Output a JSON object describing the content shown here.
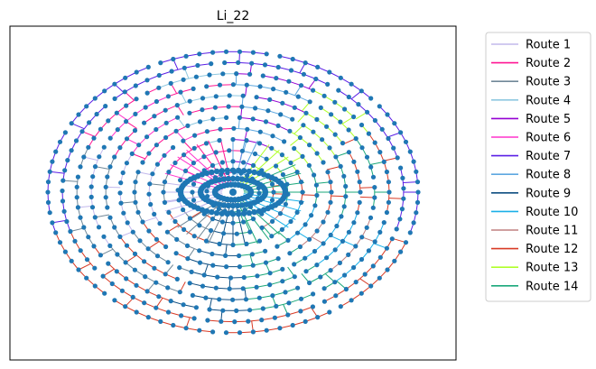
{
  "chart_data": {
    "type": "scatter",
    "title": "Li_22",
    "xlabel": "",
    "ylabel": "",
    "axes_visible": false,
    "grid": false,
    "legend_placement": "outside-right",
    "node_color": "#1f77b4",
    "depot": "center",
    "node_layout": "concentric rings around a central depot",
    "ring_count": 12,
    "series": [
      {
        "name": "Route 1",
        "color": "#c2b8ec",
        "region": "left"
      },
      {
        "name": "Route 2",
        "color": "#ff1493",
        "region": "upper-left"
      },
      {
        "name": "Route 3",
        "color": "#708898",
        "region": "left"
      },
      {
        "name": "Route 4",
        "color": "#8ec8e0",
        "region": "upper"
      },
      {
        "name": "Route 5",
        "color": "#9400d3",
        "region": "upper-right"
      },
      {
        "name": "Route 6",
        "color": "#ff33cc",
        "region": "upper-left"
      },
      {
        "name": "Route 7",
        "color": "#5a1ee6",
        "region": "outer ring"
      },
      {
        "name": "Route 8",
        "color": "#5ea8e0",
        "region": "right"
      },
      {
        "name": "Route 9",
        "color": "#0e4d80",
        "region": "lower"
      },
      {
        "name": "Route 10",
        "color": "#1ab0e8",
        "region": "lower-right"
      },
      {
        "name": "Route 11",
        "color": "#c08080",
        "region": "lower-right"
      },
      {
        "name": "Route 12",
        "color": "#d83a25",
        "region": "lower"
      },
      {
        "name": "Route 13",
        "color": "#b0ff2a",
        "region": "upper-right"
      },
      {
        "name": "Route 14",
        "color": "#1aa87a",
        "region": "lower-right"
      }
    ]
  }
}
